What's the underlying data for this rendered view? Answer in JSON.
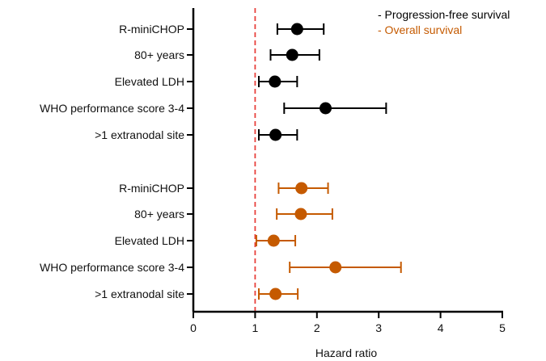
{
  "chart_data": {
    "type": "forest",
    "xlabel": "Hazard ratio",
    "xlim": [
      0,
      5
    ],
    "xticks": [
      0,
      1,
      2,
      3,
      4,
      5
    ],
    "reference_line": 1,
    "colors": {
      "pfs": "#000000",
      "os": "#c55a00",
      "reference": "#e8413c",
      "axis": "#000000"
    },
    "series": [
      {
        "name": "Progression-free survival",
        "legend_label": "- Progression-free survival",
        "color": "#000000",
        "rows": [
          {
            "label": "R-miniCHOP",
            "hr": 1.68,
            "lo": 1.36,
            "hi": 2.11
          },
          {
            "label": "80+ years",
            "hr": 1.6,
            "lo": 1.25,
            "hi": 2.04
          },
          {
            "label": "Elevated LDH",
            "hr": 1.32,
            "lo": 1.06,
            "hi": 1.68
          },
          {
            "label": "WHO performance score 3-4",
            "hr": 2.14,
            "lo": 1.47,
            "hi": 3.12
          },
          {
            "label": ">1 extranodal site",
            "hr": 1.33,
            "lo": 1.06,
            "hi": 1.68
          }
        ]
      },
      {
        "name": "Overall survival",
        "legend_label": "- Overall survival",
        "color": "#c55a00",
        "rows": [
          {
            "label": "R-miniCHOP",
            "hr": 1.75,
            "lo": 1.38,
            "hi": 2.18
          },
          {
            "label": "80+ years",
            "hr": 1.74,
            "lo": 1.35,
            "hi": 2.25
          },
          {
            "label": "Elevated LDH",
            "hr": 1.3,
            "lo": 1.02,
            "hi": 1.65
          },
          {
            "label": "WHO performance score 3-4",
            "hr": 2.3,
            "lo": 1.56,
            "hi": 3.36
          },
          {
            "label": ">1 extranodal site",
            "hr": 1.33,
            "lo": 1.06,
            "hi": 1.69
          }
        ]
      }
    ],
    "legend_position": "top-right"
  }
}
